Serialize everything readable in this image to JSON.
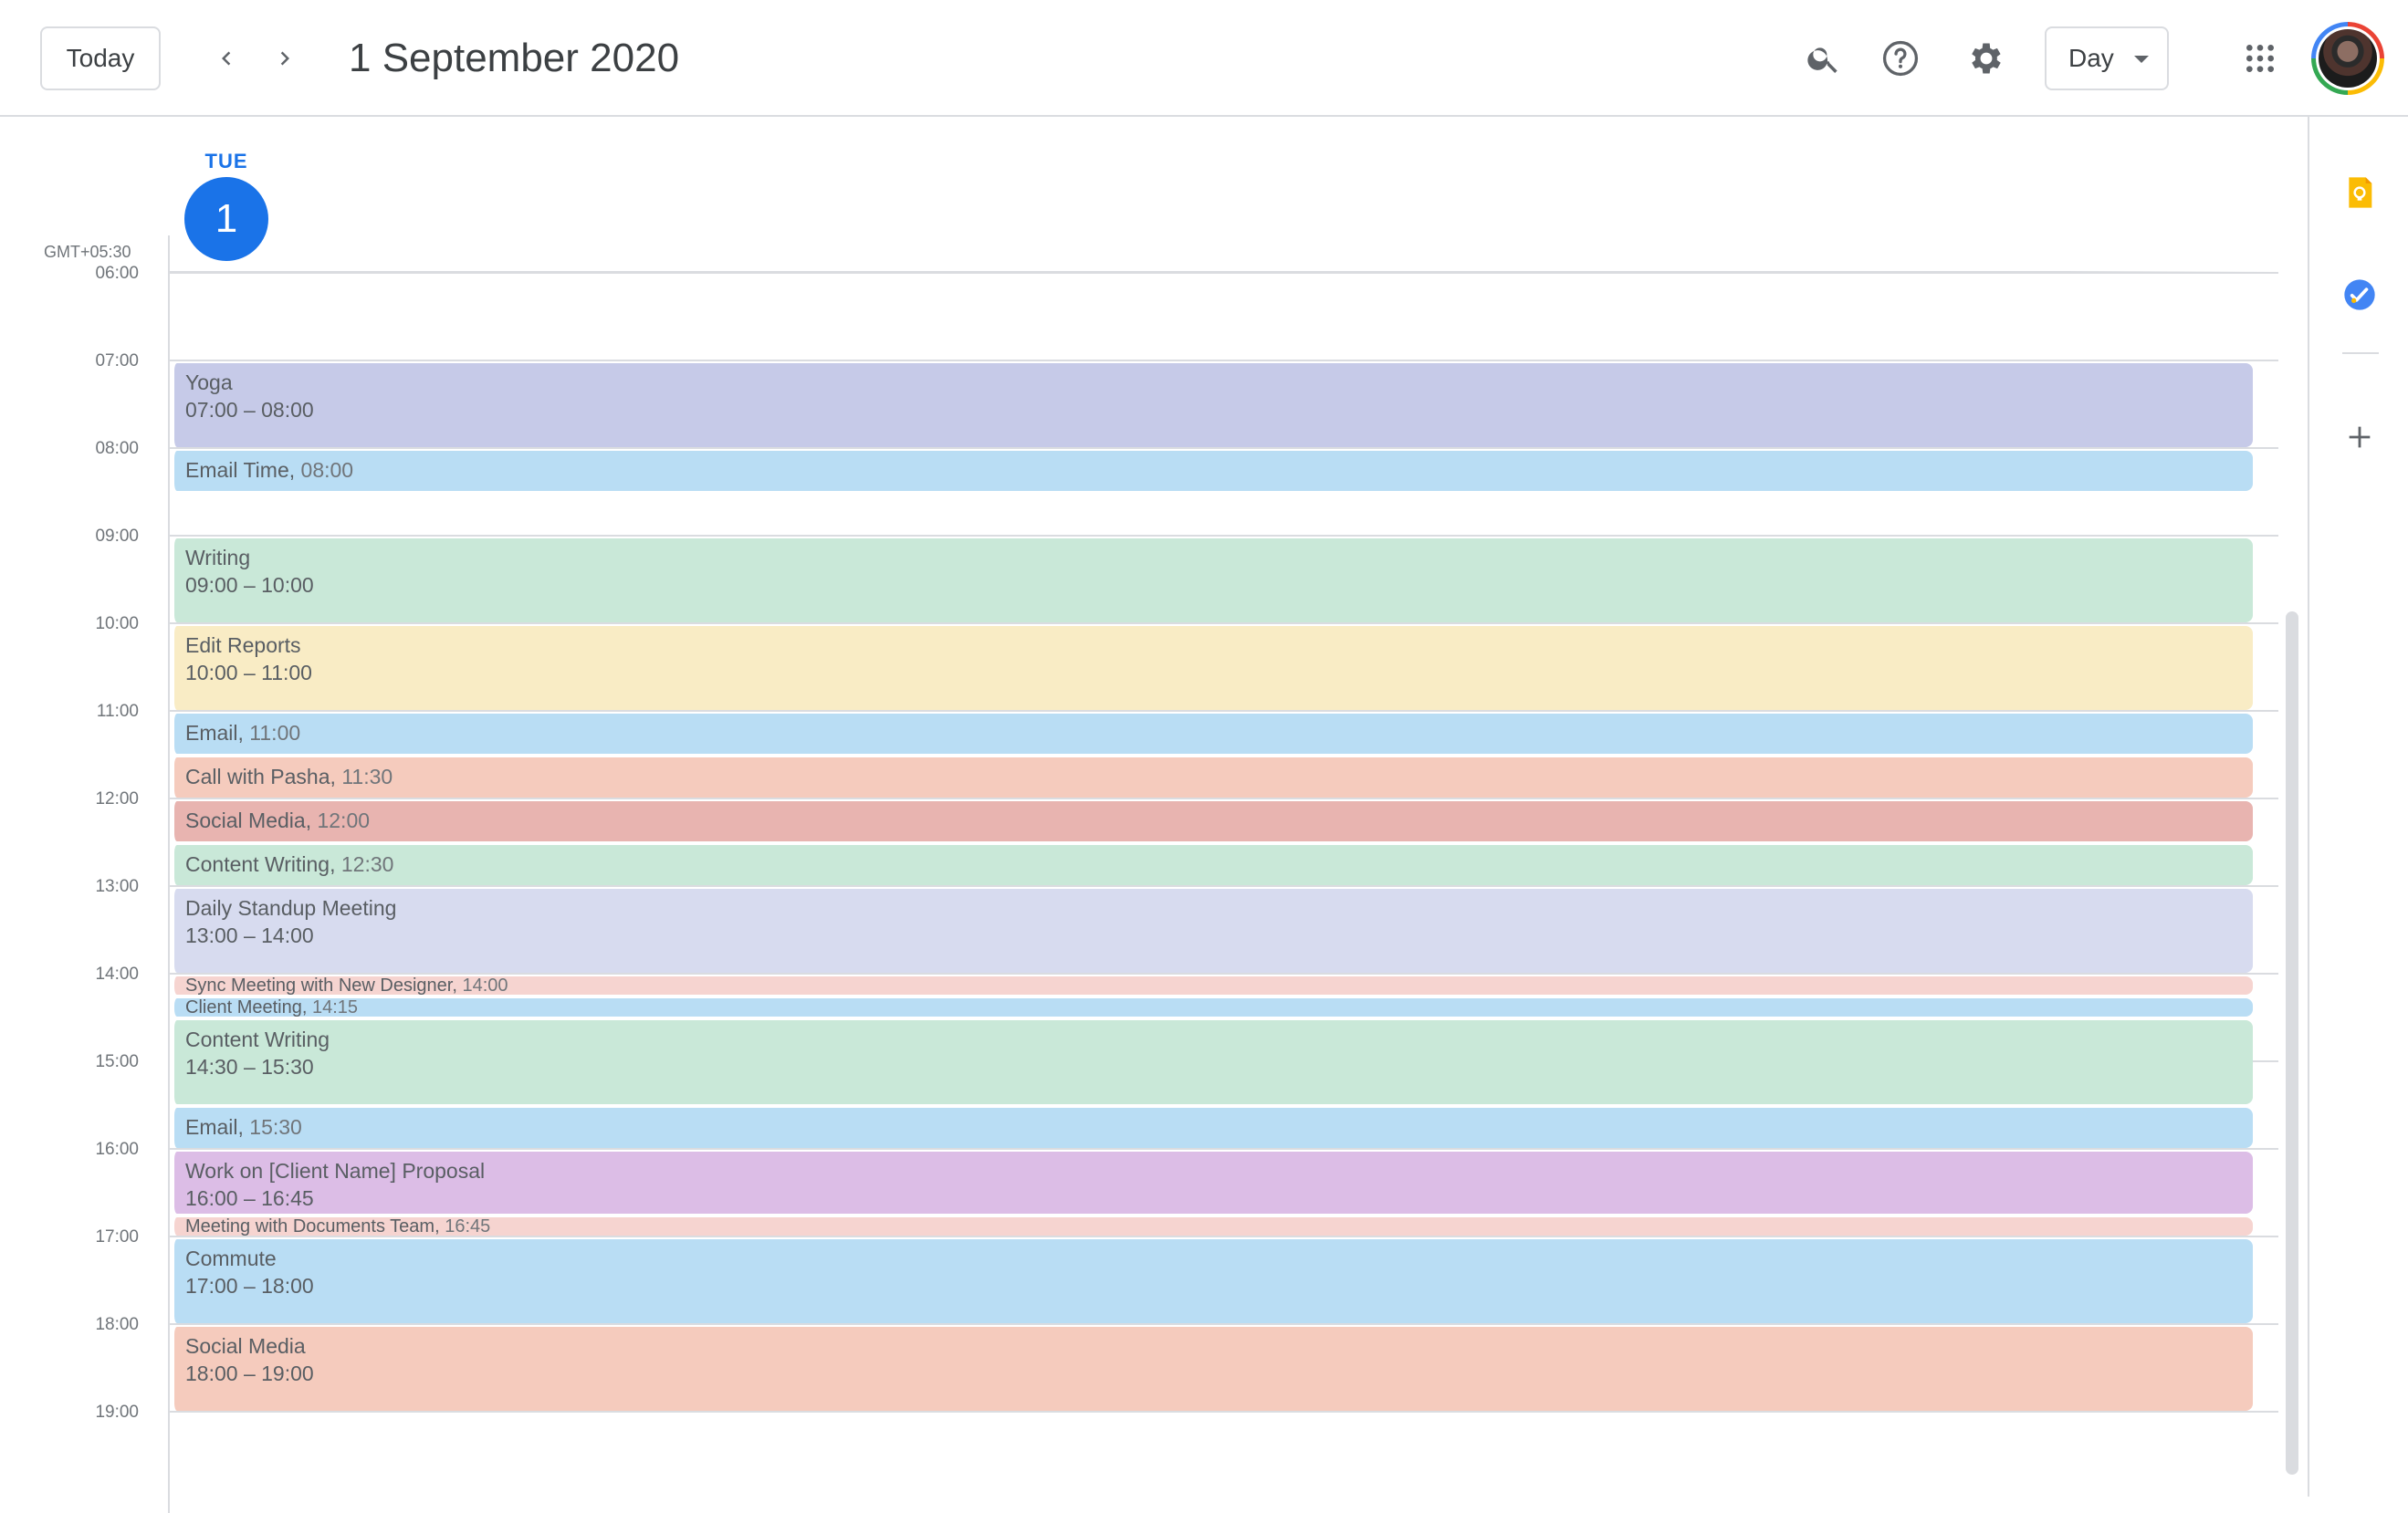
{
  "header": {
    "today_label": "Today",
    "date_title": "1 September 2020",
    "view_label": "Day"
  },
  "day": {
    "name": "TUE",
    "number": "1",
    "timezone": "GMT+05:30"
  },
  "hours": [
    "06:00",
    "07:00",
    "08:00",
    "09:00",
    "10:00",
    "11:00",
    "12:00",
    "13:00",
    "14:00",
    "15:00",
    "16:00",
    "17:00",
    "18:00",
    "19:00"
  ],
  "events": [
    {
      "title": "Yoga",
      "time": "07:00 – 08:00",
      "start": 7.0,
      "end": 8.0,
      "color": "#c6cae8",
      "style": "tall"
    },
    {
      "title": "Email Time",
      "time": "08:00",
      "start": 8.0,
      "end": 8.5,
      "color": "#b9ddf4",
      "style": "short"
    },
    {
      "title": "Writing",
      "time": "09:00 – 10:00",
      "start": 9.0,
      "end": 10.0,
      "color": "#c9e8d8",
      "style": "tall"
    },
    {
      "title": "Edit Reports",
      "time": "10:00 – 11:00",
      "start": 10.0,
      "end": 11.0,
      "color": "#f9ecc5",
      "style": "tall"
    },
    {
      "title": "Email",
      "time": "11:00",
      "start": 11.0,
      "end": 11.5,
      "color": "#b9ddf4",
      "style": "short"
    },
    {
      "title": "Call with Pasha",
      "time": "11:30",
      "start": 11.5,
      "end": 12.0,
      "color": "#f5cbbd",
      "style": "short"
    },
    {
      "title": "Social Media",
      "time": "12:00",
      "start": 12.0,
      "end": 12.5,
      "color": "#e8b4b0",
      "style": "short"
    },
    {
      "title": "Content Writing",
      "time": "12:30",
      "start": 12.5,
      "end": 13.0,
      "color": "#c9e8d8",
      "style": "short"
    },
    {
      "title": "Daily Standup Meeting",
      "time": "13:00 – 14:00",
      "start": 13.0,
      "end": 14.0,
      "color": "#d7dbef",
      "style": "tall"
    },
    {
      "title": "Sync Meeting with New Designer",
      "time": "14:00",
      "start": 14.0,
      "end": 14.25,
      "color": "#f6d4d0",
      "style": "tiny"
    },
    {
      "title": "Client Meeting",
      "time": "14:15",
      "start": 14.25,
      "end": 14.5,
      "color": "#b9ddf4",
      "style": "tiny"
    },
    {
      "title": "Content Writing",
      "time": "14:30 – 15:30",
      "start": 14.5,
      "end": 15.5,
      "color": "#c9e8d8",
      "style": "tall"
    },
    {
      "title": "Email",
      "time": "15:30",
      "start": 15.5,
      "end": 16.0,
      "color": "#b9ddf4",
      "style": "short"
    },
    {
      "title": "Work on [Client Name] Proposal",
      "time": "16:00 – 16:45",
      "start": 16.0,
      "end": 16.75,
      "color": "#dcbde6",
      "style": "tall"
    },
    {
      "title": "Meeting with Documents Team",
      "time": "16:45",
      "start": 16.75,
      "end": 17.0,
      "color": "#f6d4d0",
      "style": "tiny"
    },
    {
      "title": "Commute",
      "time": "17:00 – 18:00",
      "start": 17.0,
      "end": 18.0,
      "color": "#b9ddf4",
      "style": "tall"
    },
    {
      "title": "Social Media",
      "time": "18:00 – 19:00",
      "start": 18.0,
      "end": 19.0,
      "color": "#f5cbbd",
      "style": "tall"
    }
  ],
  "icons": {
    "search": "search-icon",
    "help": "help-icon",
    "settings": "gear-icon",
    "apps": "apps-grid-icon",
    "keep": "keep-icon",
    "tasks": "tasks-icon",
    "add": "add-icon"
  },
  "colors": {
    "accent": "#1a73e8",
    "keep": "#fbbc04",
    "tasks": "#4285f4"
  }
}
